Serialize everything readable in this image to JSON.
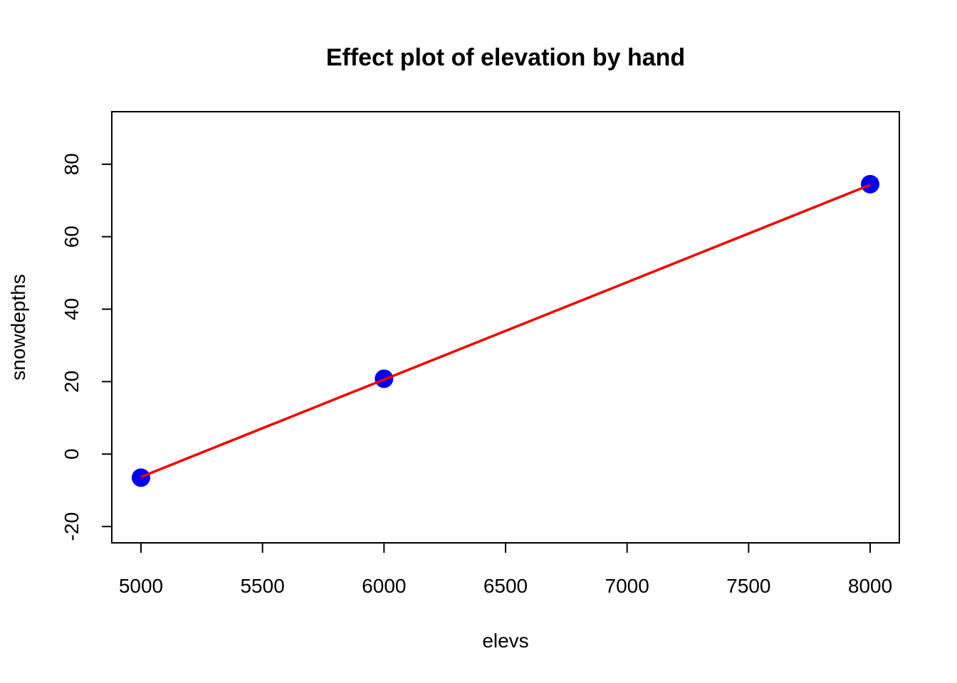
{
  "chart_data": {
    "type": "scatter",
    "title": "Effect plot of elevation by hand",
    "xlabel": "elevs",
    "ylabel": "snowdepths",
    "xlim": [
      4880,
      8120
    ],
    "ylim": [
      -24.5,
      94.5
    ],
    "x_ticks": [
      5000,
      5500,
      6000,
      6500,
      7000,
      7500,
      8000
    ],
    "y_ticks": [
      -20,
      0,
      20,
      40,
      60,
      80
    ],
    "grid": false,
    "legend": "none",
    "series": [
      {
        "kind": "points",
        "color": "#0000ee",
        "points": [
          {
            "x": 5000,
            "y": -6.5
          },
          {
            "x": 6000,
            "y": 20.8
          },
          {
            "x": 8000,
            "y": 74.5
          }
        ]
      },
      {
        "kind": "line",
        "color": "#ee0000",
        "points": [
          {
            "x": 5000,
            "y": -6.3
          },
          {
            "x": 8000,
            "y": 74.3
          }
        ]
      }
    ]
  }
}
